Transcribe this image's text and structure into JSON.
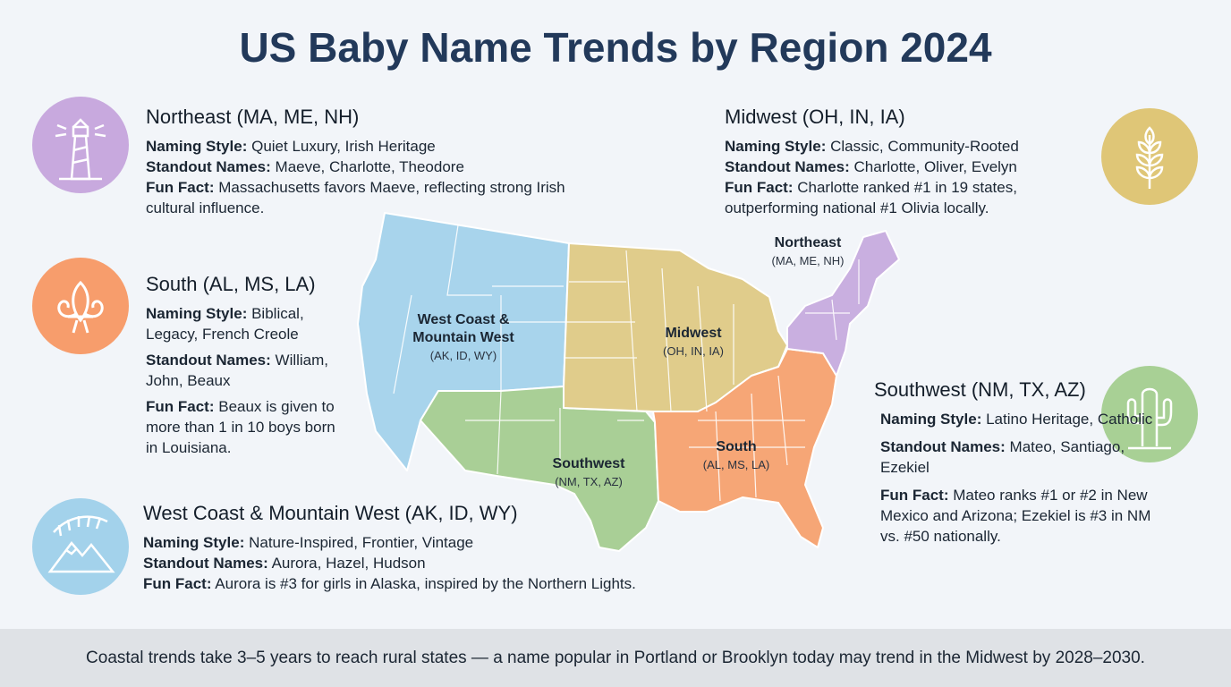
{
  "title": "US Baby Name Trends by Region 2024",
  "panels": [
    {
      "heading": "Northeast (MA, ME, NH)",
      "items": [
        {
          "label": "Naming Style:",
          "text": "Quiet Luxury, Irish Heritage"
        },
        {
          "label": "Standout Names:",
          "text": "Maeve, Charlotte, Theodore"
        },
        {
          "label": "Fun Fact:",
          "text": "Massachusetts favors Maeve, reflecting strong Irish cultural influence."
        }
      ]
    },
    {
      "heading": "South (AL, MS, LA)",
      "items": [
        {
          "label": "Naming Style:",
          "text": "Biblical, Legacy, French Creole"
        },
        {
          "label": "Standout Names:",
          "text": "William, John, Beaux"
        },
        {
          "label": "Fun Fact:",
          "text": "Beaux is given to more than 1 in 10 boys born in Louisiana."
        }
      ]
    },
    {
      "heading": "West Coast & Mountain West (AK, ID, WY)",
      "items": [
        {
          "label": "Naming Style:",
          "text": "Nature-Inspired, Frontier, Vintage"
        },
        {
          "label": "Standout Names:",
          "text": "Aurora, Hazel, Hudson"
        },
        {
          "label": "Fun Fact:",
          "text": "Aurora is #3 for girls in Alaska, inspired by the Northern Lights."
        }
      ]
    },
    {
      "heading": "Midwest (OH, IN, IA)",
      "items": [
        {
          "label": "Naming Style:",
          "text": "Classic, Community-Rooted"
        },
        {
          "label": "Standout Names:",
          "text": "Charlotte, Oliver, Evelyn"
        },
        {
          "label": "Fun Fact:",
          "text": "Charlotte ranked #1 in 19 states, outperforming national #1 Olivia locally."
        }
      ]
    },
    {
      "heading": "Southwest (NM, TX, AZ)",
      "items": [
        {
          "label": "Naming Style:",
          "text": "Latino Heritage, Catholic"
        },
        {
          "label": "Standout Names:",
          "text": "Mateo, Santiago, Ezekiel"
        },
        {
          "label": "Fun Fact:",
          "text": "Mateo ranks #1 or #2 in New Mexico and Arizona; Ezekiel is #3 in NM vs. #50 nationally."
        }
      ]
    }
  ],
  "map_labels": [
    {
      "name": "Northeast",
      "states": "(MA, ME, NH)"
    },
    {
      "name": "West Coast & Mountain West",
      "states": "(AK, ID, WY)"
    },
    {
      "name": "Midwest",
      "states": "(OH, IN, IA)"
    },
    {
      "name": "South",
      "states": "(AL, MS, LA)"
    },
    {
      "name": "Southwest",
      "states": "(NM, TX, AZ)"
    }
  ],
  "footer": "Coastal trends take 3–5 years to reach rural states — a name popular in Portland or Brooklyn today may trend in the Midwest by 2028–2030."
}
